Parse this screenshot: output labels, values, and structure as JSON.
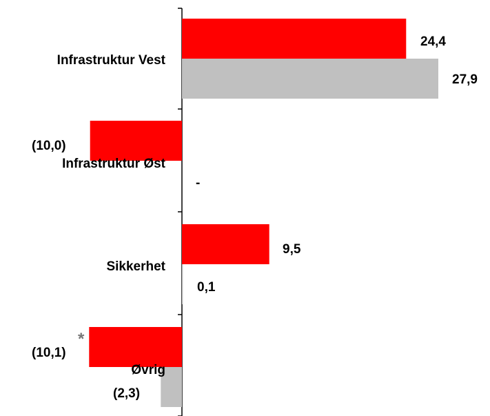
{
  "colors": {
    "series_a": "#ff0000",
    "series_b": "#c0c0c0",
    "axis": "#000000",
    "footnote_marker": "#777777"
  },
  "chart_data": {
    "type": "bar",
    "orientation": "horizontal",
    "categories": [
      "Infrastruktur Vest",
      "Infrastruktur Øst",
      "Sikkerhet",
      "Øvrig"
    ],
    "series": [
      {
        "color": "#ff0000",
        "values": [
          24.4,
          -10.0,
          9.5,
          -10.1
        ],
        "labels": [
          "24,4",
          "(10,0)",
          "9,5",
          "(10,1)"
        ]
      },
      {
        "color": "#c0c0c0",
        "values": [
          27.9,
          0,
          0.1,
          -2.3
        ],
        "labels": [
          "27,9",
          "-",
          "0,1",
          "(2,3)"
        ]
      }
    ],
    "footnote_marker": "*",
    "grid": false,
    "legend": "none"
  }
}
